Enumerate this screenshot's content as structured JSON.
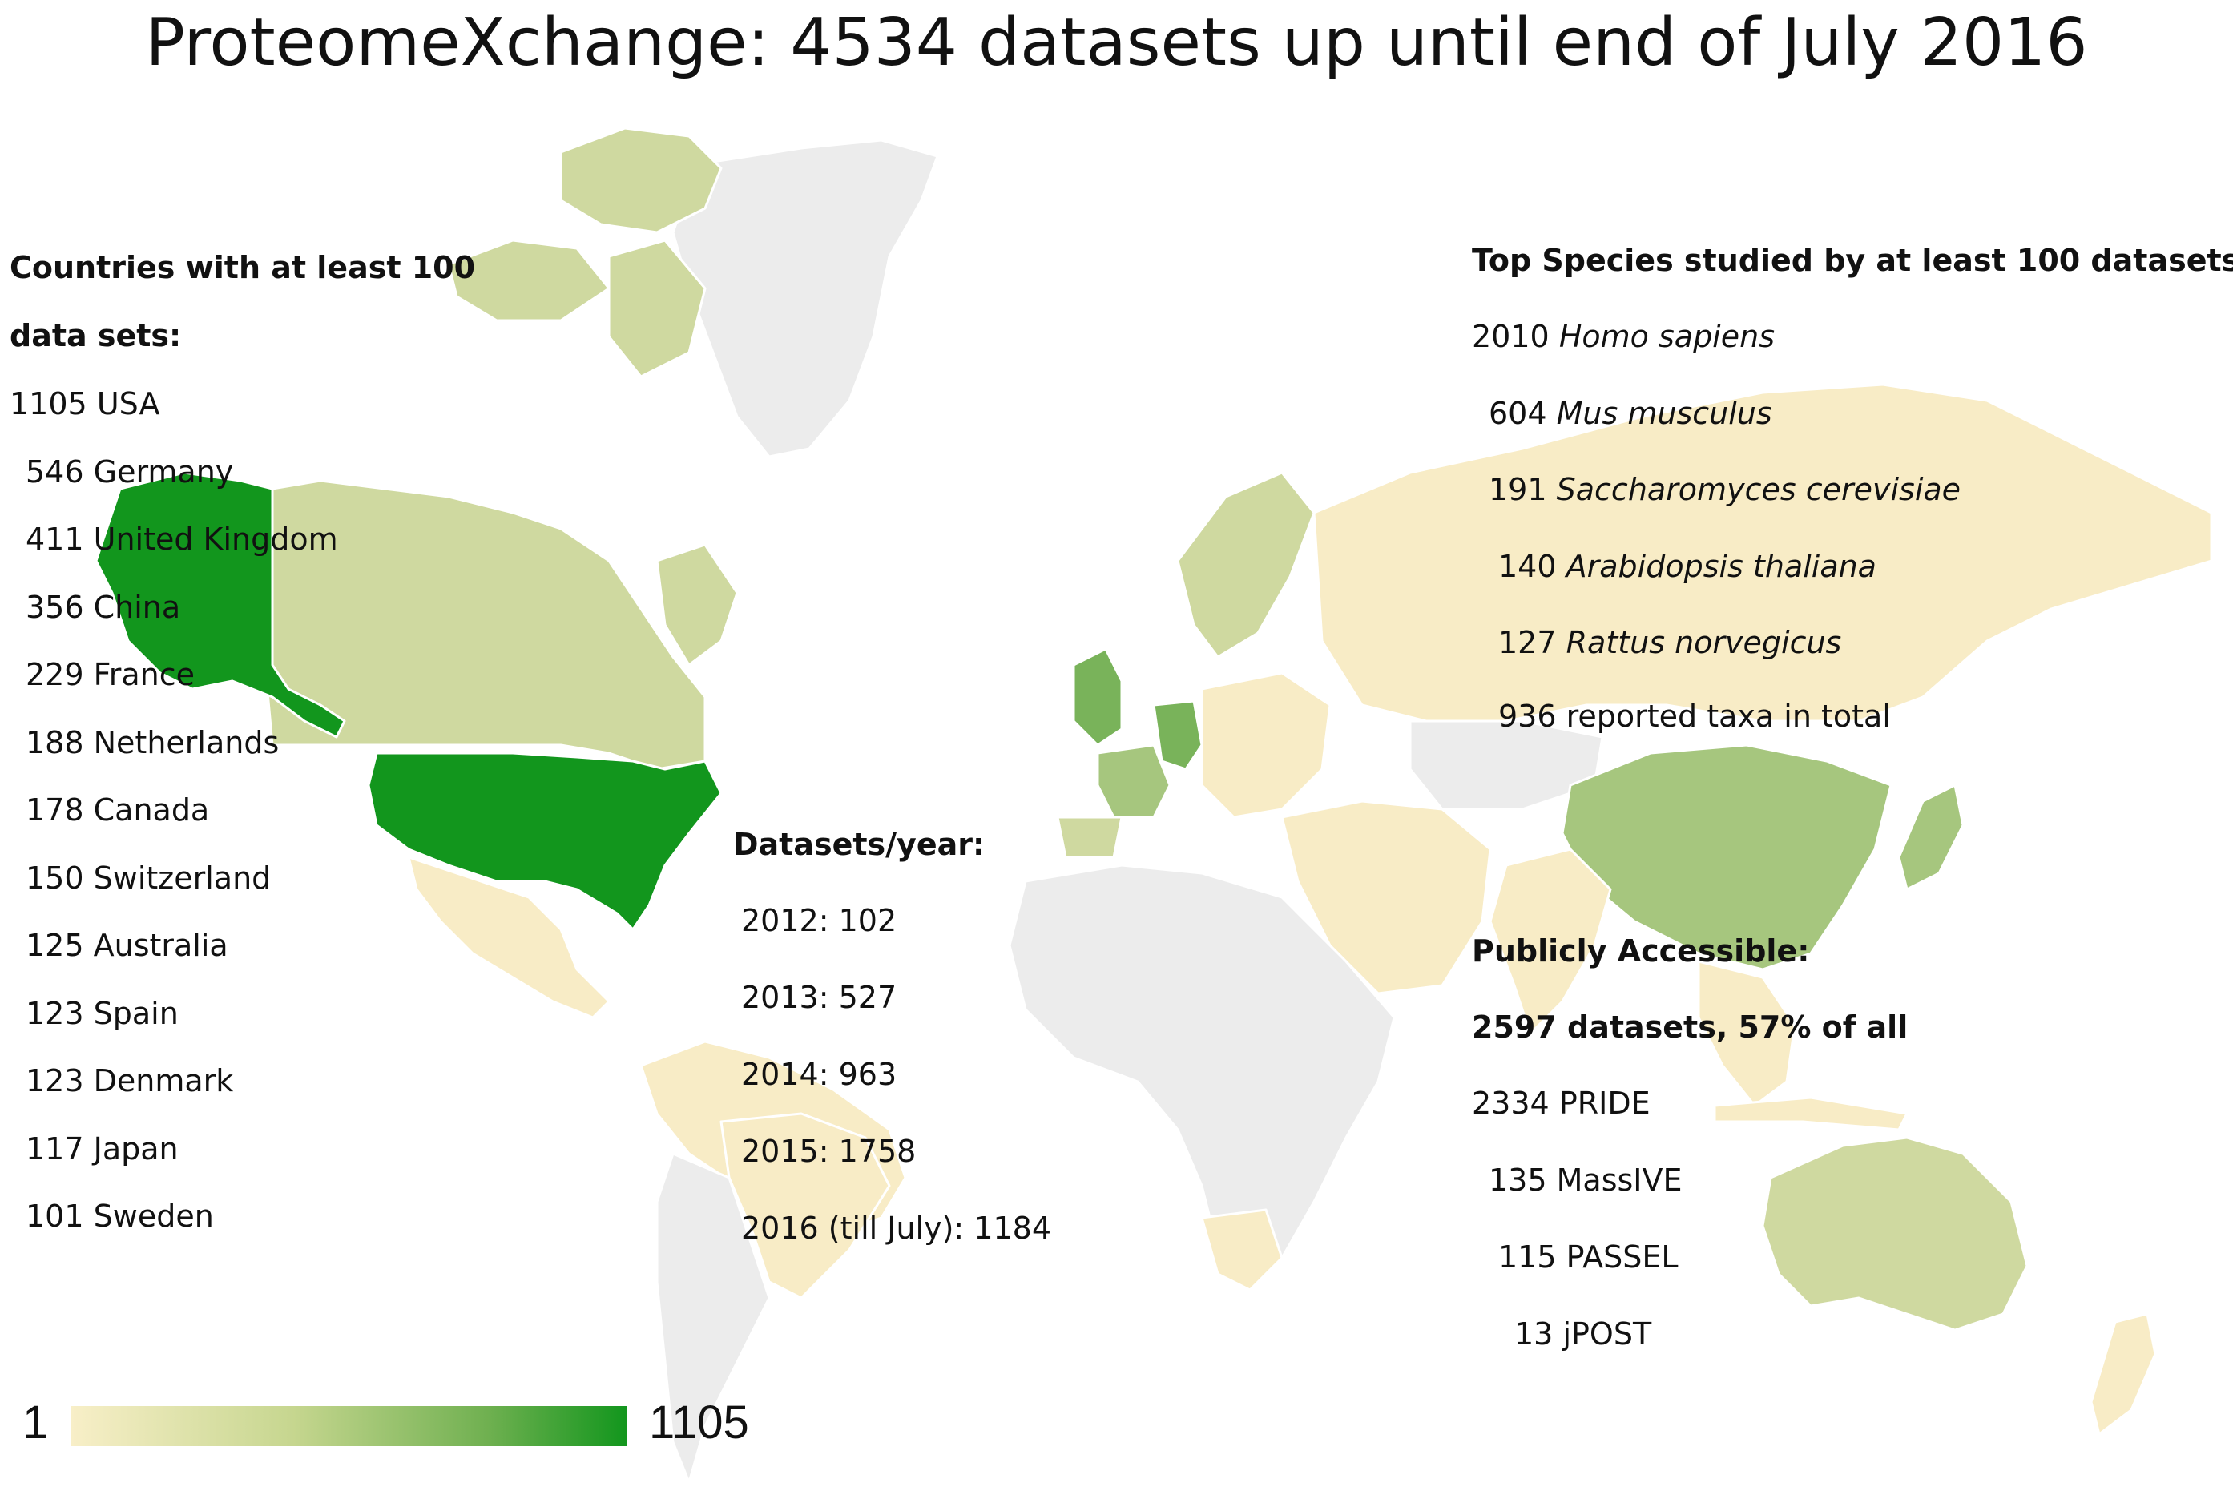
{
  "title": "ProteomeXchange: 4534 datasets up until end of July 2016",
  "countries_panel": {
    "heading_line1": "Countries with at least 100",
    "heading_line2": "data sets:",
    "rows": [
      {
        "count": "1105",
        "country": "USA"
      },
      {
        "count": "546",
        "country": "Germany"
      },
      {
        "count": "411",
        "country": "United Kingdom"
      },
      {
        "count": "356",
        "country": "China"
      },
      {
        "count": "229",
        "country": "France"
      },
      {
        "count": "188",
        "country": "Netherlands"
      },
      {
        "count": "178",
        "country": "Canada"
      },
      {
        "count": "150",
        "country": "Switzerland"
      },
      {
        "count": "125",
        "country": "Australia"
      },
      {
        "count": "123",
        "country": "Spain"
      },
      {
        "count": "123",
        "country": "Denmark"
      },
      {
        "count": "117",
        "country": "Japan"
      },
      {
        "count": "101",
        "country": "Sweden"
      }
    ]
  },
  "years_panel": {
    "heading": "Datasets/year:",
    "rows": [
      {
        "label": "2012:",
        "value": "102"
      },
      {
        "label": "2013:",
        "value": "527"
      },
      {
        "label": "2014:",
        "value": "963"
      },
      {
        "label": "2015:",
        "value": "1758"
      },
      {
        "label": "2016 (till July):",
        "value": "1184"
      }
    ]
  },
  "species_panel": {
    "heading": "Top Species studied by at least 100 datasets:",
    "rows": [
      {
        "count": "2010",
        "name": "Homo sapiens"
      },
      {
        "count": "604",
        "name": "Mus musculus"
      },
      {
        "count": "191",
        "name": "Saccharomyces cerevisiae"
      },
      {
        "count": "140",
        "name": "Arabidopsis thaliana"
      },
      {
        "count": "127",
        "name": "Rattus norvegicus"
      }
    ],
    "total": "936 reported taxa in total"
  },
  "public_panel": {
    "heading": "Publicly Accessible:",
    "subheading": "2597 datasets, 57% of all",
    "rows": [
      {
        "count": "2334",
        "repo": "PRIDE"
      },
      {
        "count": "135",
        "repo": "MassIVE"
      },
      {
        "count": "115",
        "repo": "PASSEL"
      },
      {
        "count": "13",
        "repo": "jPOST"
      }
    ]
  },
  "legend": {
    "min": "1",
    "max": "1105",
    "color_min": "#f8efc8",
    "color_max": "#12961d"
  },
  "colors": {
    "no_data": "#ececec",
    "low": "#f8ecc6",
    "low_mid": "#cfd9a0",
    "mid": "#a6c67e",
    "mid_high": "#79b35a",
    "high": "#12961d",
    "border": "#ffffff"
  }
}
